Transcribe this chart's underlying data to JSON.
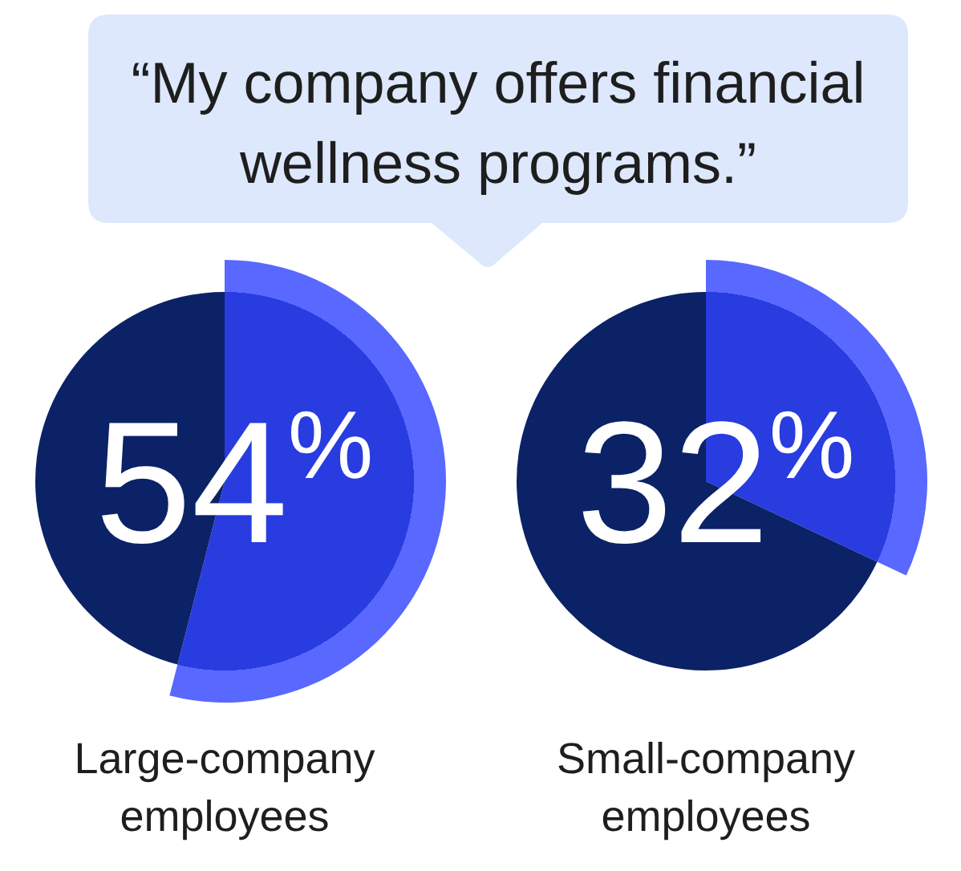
{
  "chart_data": [
    {
      "type": "pie",
      "title": "“My company offers financial wellness programs.”",
      "xlabel": "Large-company employees",
      "categories": [
        null,
        null
      ],
      "values": [
        54,
        46
      ],
      "colors": [
        "#283ce0",
        "#0b2266"
      ],
      "value_labels": [
        "54$^{%}$",
        null
      ]
    },
    {
      "type": "pie",
      "xlabel": "Small-company employees",
      "categories": [
        null,
        null
      ],
      "values": [
        32,
        68
      ],
      "colors": [
        "#283ce0",
        "#0b2266"
      ],
      "value_labels": [
        "32$^{%}$",
        null
      ]
    }
  ]
}
